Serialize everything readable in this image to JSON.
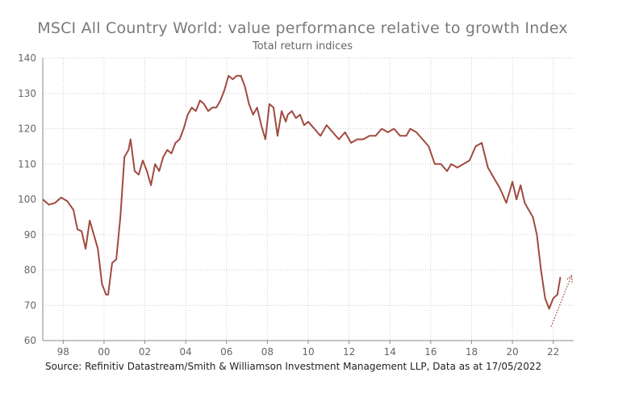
{
  "title": "MSCI All Country World: value performance relative to growth Index",
  "subtitle": "Total return indices",
  "source": "Source: Refinitiv Datastream/Smith & Williamson Investment Management LLP, Data as at 17/05/2022",
  "colors": {
    "line": "#a04a3f",
    "grid": "#cfcfcf",
    "axis": "#888888",
    "text": "#666666"
  },
  "chart_data": {
    "type": "line",
    "title": "MSCI All Country World: value performance relative to growth Index",
    "subtitle": "Total return indices",
    "xlabel": "",
    "ylabel": "",
    "xlim": [
      1997.0,
      2023.0
    ],
    "ylim": [
      60,
      140
    ],
    "y_ticks": [
      60,
      70,
      80,
      90,
      100,
      110,
      120,
      130,
      140
    ],
    "x_ticks": [
      1998,
      2000,
      2002,
      2004,
      2006,
      2008,
      2010,
      2012,
      2014,
      2016,
      2018,
      2020,
      2022
    ],
    "x_tick_labels": [
      "98",
      "00",
      "02",
      "04",
      "06",
      "08",
      "10",
      "12",
      "14",
      "16",
      "18",
      "20",
      "22"
    ],
    "grid": true,
    "legend": "none",
    "annotations": [
      {
        "type": "dotted-arrow",
        "from": [
          2021.9,
          64
        ],
        "to": [
          2022.9,
          78.5
        ]
      }
    ],
    "series": [
      {
        "x": [
          1997.0,
          1997.3,
          1997.6,
          1997.9,
          1998.2,
          1998.5,
          1998.7,
          1998.9,
          1999.1,
          1999.3,
          1999.5,
          1999.7,
          1999.9,
          2000.1,
          2000.2,
          2000.4,
          2000.6,
          2000.8,
          2001.0,
          2001.2,
          2001.3,
          2001.5,
          2001.7,
          2001.9,
          2002.1,
          2002.3,
          2002.5,
          2002.7,
          2002.9,
          2003.1,
          2003.3,
          2003.5,
          2003.7,
          2003.9,
          2004.1,
          2004.3,
          2004.5,
          2004.7,
          2004.9,
          2005.1,
          2005.3,
          2005.5,
          2005.7,
          2005.9,
          2006.1,
          2006.3,
          2006.5,
          2006.7,
          2006.9,
          2007.1,
          2007.3,
          2007.5,
          2007.7,
          2007.9,
          2008.1,
          2008.3,
          2008.5,
          2008.7,
          2008.9,
          2009.0,
          2009.2,
          2009.4,
          2009.6,
          2009.8,
          2010.0,
          2010.3,
          2010.6,
          2010.9,
          2011.2,
          2011.5,
          2011.8,
          2012.1,
          2012.4,
          2012.7,
          2013.0,
          2013.3,
          2013.6,
          2013.9,
          2014.2,
          2014.5,
          2014.8,
          2015.0,
          2015.3,
          2015.6,
          2015.9,
          2016.2,
          2016.5,
          2016.8,
          2017.0,
          2017.3,
          2017.6,
          2017.9,
          2018.2,
          2018.5,
          2018.8,
          2019.1,
          2019.4,
          2019.7,
          2020.0,
          2020.2,
          2020.4,
          2020.6,
          2020.8,
          2021.0,
          2021.2,
          2021.4,
          2021.6,
          2021.8,
          2022.0,
          2022.2,
          2022.35
        ],
        "y": [
          100,
          98.5,
          99,
          100.5,
          99.5,
          97,
          91.5,
          91,
          86,
          94,
          90,
          86,
          76,
          73,
          73,
          82,
          83,
          95,
          112,
          114,
          117,
          108,
          107,
          111,
          108,
          104,
          110,
          108,
          112,
          114,
          113,
          116,
          117,
          120,
          124,
          126,
          125,
          128,
          127,
          125,
          126,
          126,
          128,
          131,
          135,
          134,
          135,
          135,
          132,
          127,
          124,
          126,
          121,
          117,
          127,
          126,
          118,
          125,
          122,
          124,
          125,
          123,
          124,
          121,
          122,
          120,
          118,
          121,
          119,
          117,
          119,
          116,
          117,
          117,
          118,
          118,
          120,
          119,
          120,
          118,
          118,
          120,
          119,
          117,
          115,
          110,
          110,
          108,
          110,
          109,
          110,
          111,
          115,
          116,
          109,
          106,
          103,
          99,
          105,
          100,
          104,
          99,
          97,
          95,
          90,
          80,
          72,
          69,
          72,
          73,
          78
        ]
      }
    ]
  }
}
